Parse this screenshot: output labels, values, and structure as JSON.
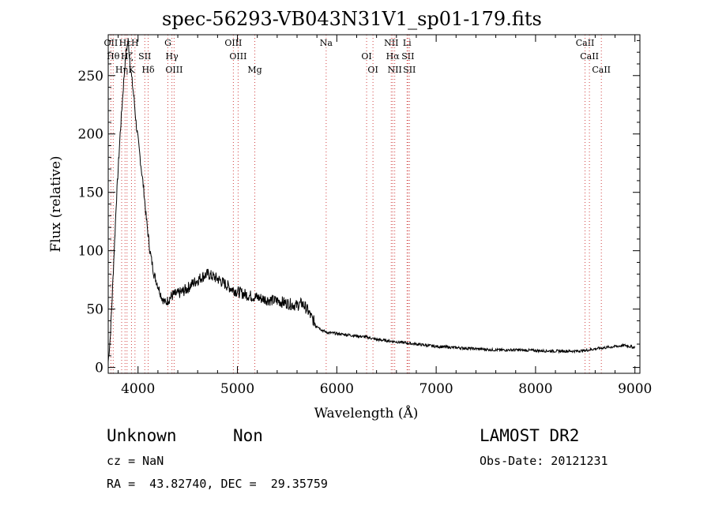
{
  "title": "spec-56293-VB043N31V1_sp01-179.fits",
  "chart_data": {
    "type": "line",
    "xlabel": "Wavelength (Å)",
    "ylabel": "Flux (relative)",
    "xlim": [
      3700,
      9050
    ],
    "ylim": [
      -5,
      285
    ],
    "xticks": [
      4000,
      5000,
      6000,
      7000,
      8000,
      9000
    ],
    "yticks": [
      0,
      50,
      100,
      150,
      200,
      250
    ],
    "grid": false,
    "series": [
      {
        "x": [
          3700,
          3720,
          3740,
          3760,
          3780,
          3800,
          3820,
          3840,
          3860,
          3880,
          3900,
          3920,
          3940,
          3960,
          3980,
          4000,
          4020,
          4040,
          4060,
          4080,
          4100,
          4120,
          4140,
          4160,
          4180,
          4200,
          4220,
          4240,
          4260,
          4280,
          4300,
          4350,
          4400,
          4450,
          4500,
          4550,
          4600,
          4650,
          4700,
          4750,
          4800,
          4850,
          4900,
          4950,
          5000,
          5100,
          5200,
          5300,
          5400,
          5500,
          5600,
          5650,
          5700,
          5750,
          5800,
          5850,
          5900,
          6000,
          6100,
          6200,
          6300,
          6400,
          6500,
          6600,
          6700,
          6800,
          6900,
          7000,
          7200,
          7400,
          7600,
          7800,
          8000,
          8200,
          8400,
          8500,
          8600,
          8700,
          8800,
          8900,
          8950,
          9000
        ],
        "y": [
          5,
          25,
          60,
          100,
          140,
          170,
          200,
          225,
          250,
          270,
          280,
          260,
          245,
          230,
          210,
          195,
          180,
          165,
          150,
          130,
          115,
          100,
          90,
          80,
          75,
          70,
          65,
          60,
          57,
          55,
          58,
          62,
          63,
          65,
          68,
          72,
          75,
          78,
          80,
          78,
          76,
          73,
          70,
          67,
          65,
          62,
          60,
          58,
          57,
          55,
          53,
          55,
          50,
          42,
          36,
          32,
          30,
          29,
          28,
          27,
          26,
          24,
          23,
          22,
          21,
          20,
          19,
          18,
          17,
          16,
          15,
          15,
          14.5,
          14,
          14,
          14.5,
          16,
          17,
          18,
          19,
          18,
          17
        ]
      }
    ],
    "lines": [
      {
        "wl": 3727,
        "labels": [
          "OII"
        ]
      },
      {
        "wl": 3750,
        "labels": [
          "Hθ"
        ]
      },
      {
        "wl": 3835,
        "labels": [
          "Hη"
        ]
      },
      {
        "wl": 3869,
        "labels": [
          "Hε"
        ]
      },
      {
        "wl": 3889,
        "labels": [
          "Hζ"
        ]
      },
      {
        "wl": 3934,
        "labels": [
          "K"
        ]
      },
      {
        "wl": 3969,
        "labels": [
          "H"
        ]
      },
      {
        "wl": 4068,
        "labels": [
          "SII"
        ]
      },
      {
        "wl": 4102,
        "labels": [
          "Hδ"
        ]
      },
      {
        "wl": 4300,
        "labels": [
          "G"
        ]
      },
      {
        "wl": 4341,
        "labels": [
          "Hγ"
        ]
      },
      {
        "wl": 4363,
        "labels": [
          "OIII"
        ]
      },
      {
        "wl": 4959,
        "labels": [
          "OIII"
        ]
      },
      {
        "wl": 5007,
        "labels": [
          "OIII"
        ]
      },
      {
        "wl": 5175,
        "labels": [
          "Mg"
        ]
      },
      {
        "wl": 5893,
        "labels": [
          "Na"
        ]
      },
      {
        "wl": 6300,
        "labels": [
          "OI"
        ]
      },
      {
        "wl": 6364,
        "labels": [
          "OI"
        ]
      },
      {
        "wl": 6548,
        "labels": [
          "NII"
        ]
      },
      {
        "wl": 6563,
        "labels": [
          "Hα"
        ]
      },
      {
        "wl": 6583,
        "labels": [
          "NII"
        ]
      },
      {
        "wl": 6707,
        "labels": [
          "Li"
        ]
      },
      {
        "wl": 6716,
        "labels": [
          "SII"
        ]
      },
      {
        "wl": 6731,
        "labels": [
          "SII"
        ]
      },
      {
        "wl": 8498,
        "labels": [
          "CaII"
        ]
      },
      {
        "wl": 8542,
        "labels": [
          "CaII"
        ]
      },
      {
        "wl": 8662,
        "labels": [
          "CaII"
        ]
      }
    ]
  },
  "info": {
    "class": "Unknown",
    "subclass": "Non",
    "cz": "cz = NaN",
    "radec": "RA =  43.82740, DEC =  29.35759",
    "survey": "LAMOST DR2",
    "obsdate": "Obs-Date: 20121231"
  }
}
